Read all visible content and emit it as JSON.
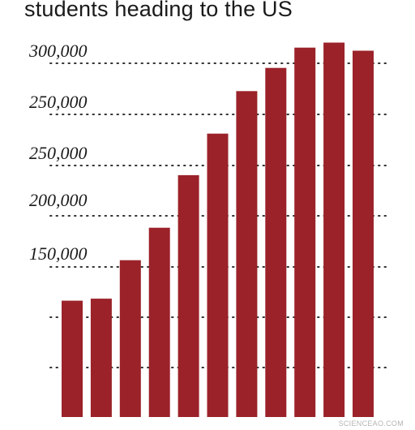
{
  "chart_data": {
    "type": "bar",
    "title": "students heading to the US",
    "y_tick_labels": [
      "300,000",
      "250,000",
      "250,000",
      "200,000",
      "150,000",
      "",
      ""
    ],
    "values": [
      115000,
      117000,
      155000,
      187000,
      239000,
      280000,
      322000,
      345000,
      365000,
      370000,
      362000
    ],
    "ylim": [
      0,
      380000
    ],
    "grid": "dotted horizontal",
    "bar_color": "#9b2229"
  },
  "watermark": "SCIENCEAO.COM"
}
